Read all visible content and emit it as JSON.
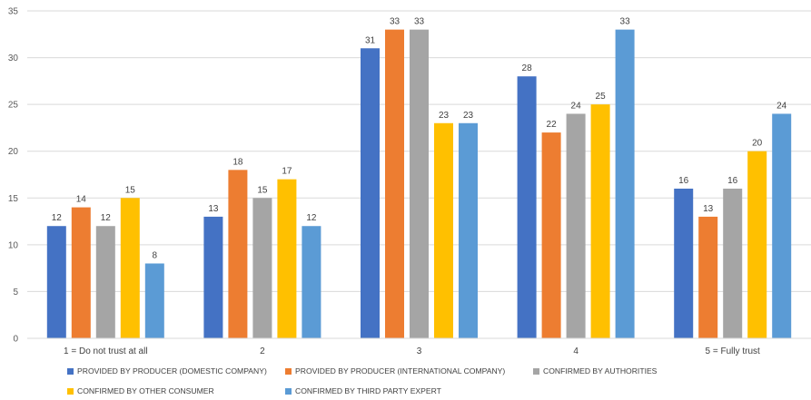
{
  "chart_data": {
    "type": "bar",
    "categories": [
      "1 = Do not trust at all",
      "2",
      "3",
      "4",
      "5 = Fully trust"
    ],
    "series": [
      {
        "name": "PROVIDED BY PRODUCER (DOMESTIC COMPANY)",
        "color": "#4472c4",
        "values": [
          12,
          13,
          31,
          28,
          16
        ]
      },
      {
        "name": "PROVIDED BY PRODUCER (INTERNATIONAL COMPANY)",
        "color": "#ed7d31",
        "values": [
          14,
          18,
          33,
          22,
          13
        ]
      },
      {
        "name": "CONFIRMED BY AUTHORITIES",
        "color": "#a5a5a5",
        "values": [
          12,
          15,
          33,
          24,
          16
        ]
      },
      {
        "name": "CONFIRMED BY OTHER CONSUMER",
        "color": "#ffc000",
        "values": [
          15,
          17,
          23,
          25,
          20
        ]
      },
      {
        "name": "CONFIRMED BY THIRD PARTY EXPERT",
        "color": "#5b9bd5",
        "values": [
          8,
          12,
          23,
          33,
          24
        ]
      }
    ],
    "yticks": [
      "0",
      "5",
      "10",
      "15",
      "20",
      "25",
      "30",
      "35"
    ],
    "ylim": [
      0,
      35
    ],
    "grid": true,
    "gridColor": "#d9d9d9",
    "data_labels": true,
    "legend_position": "bottom",
    "title": "",
    "xlabel": "",
    "ylabel": ""
  }
}
